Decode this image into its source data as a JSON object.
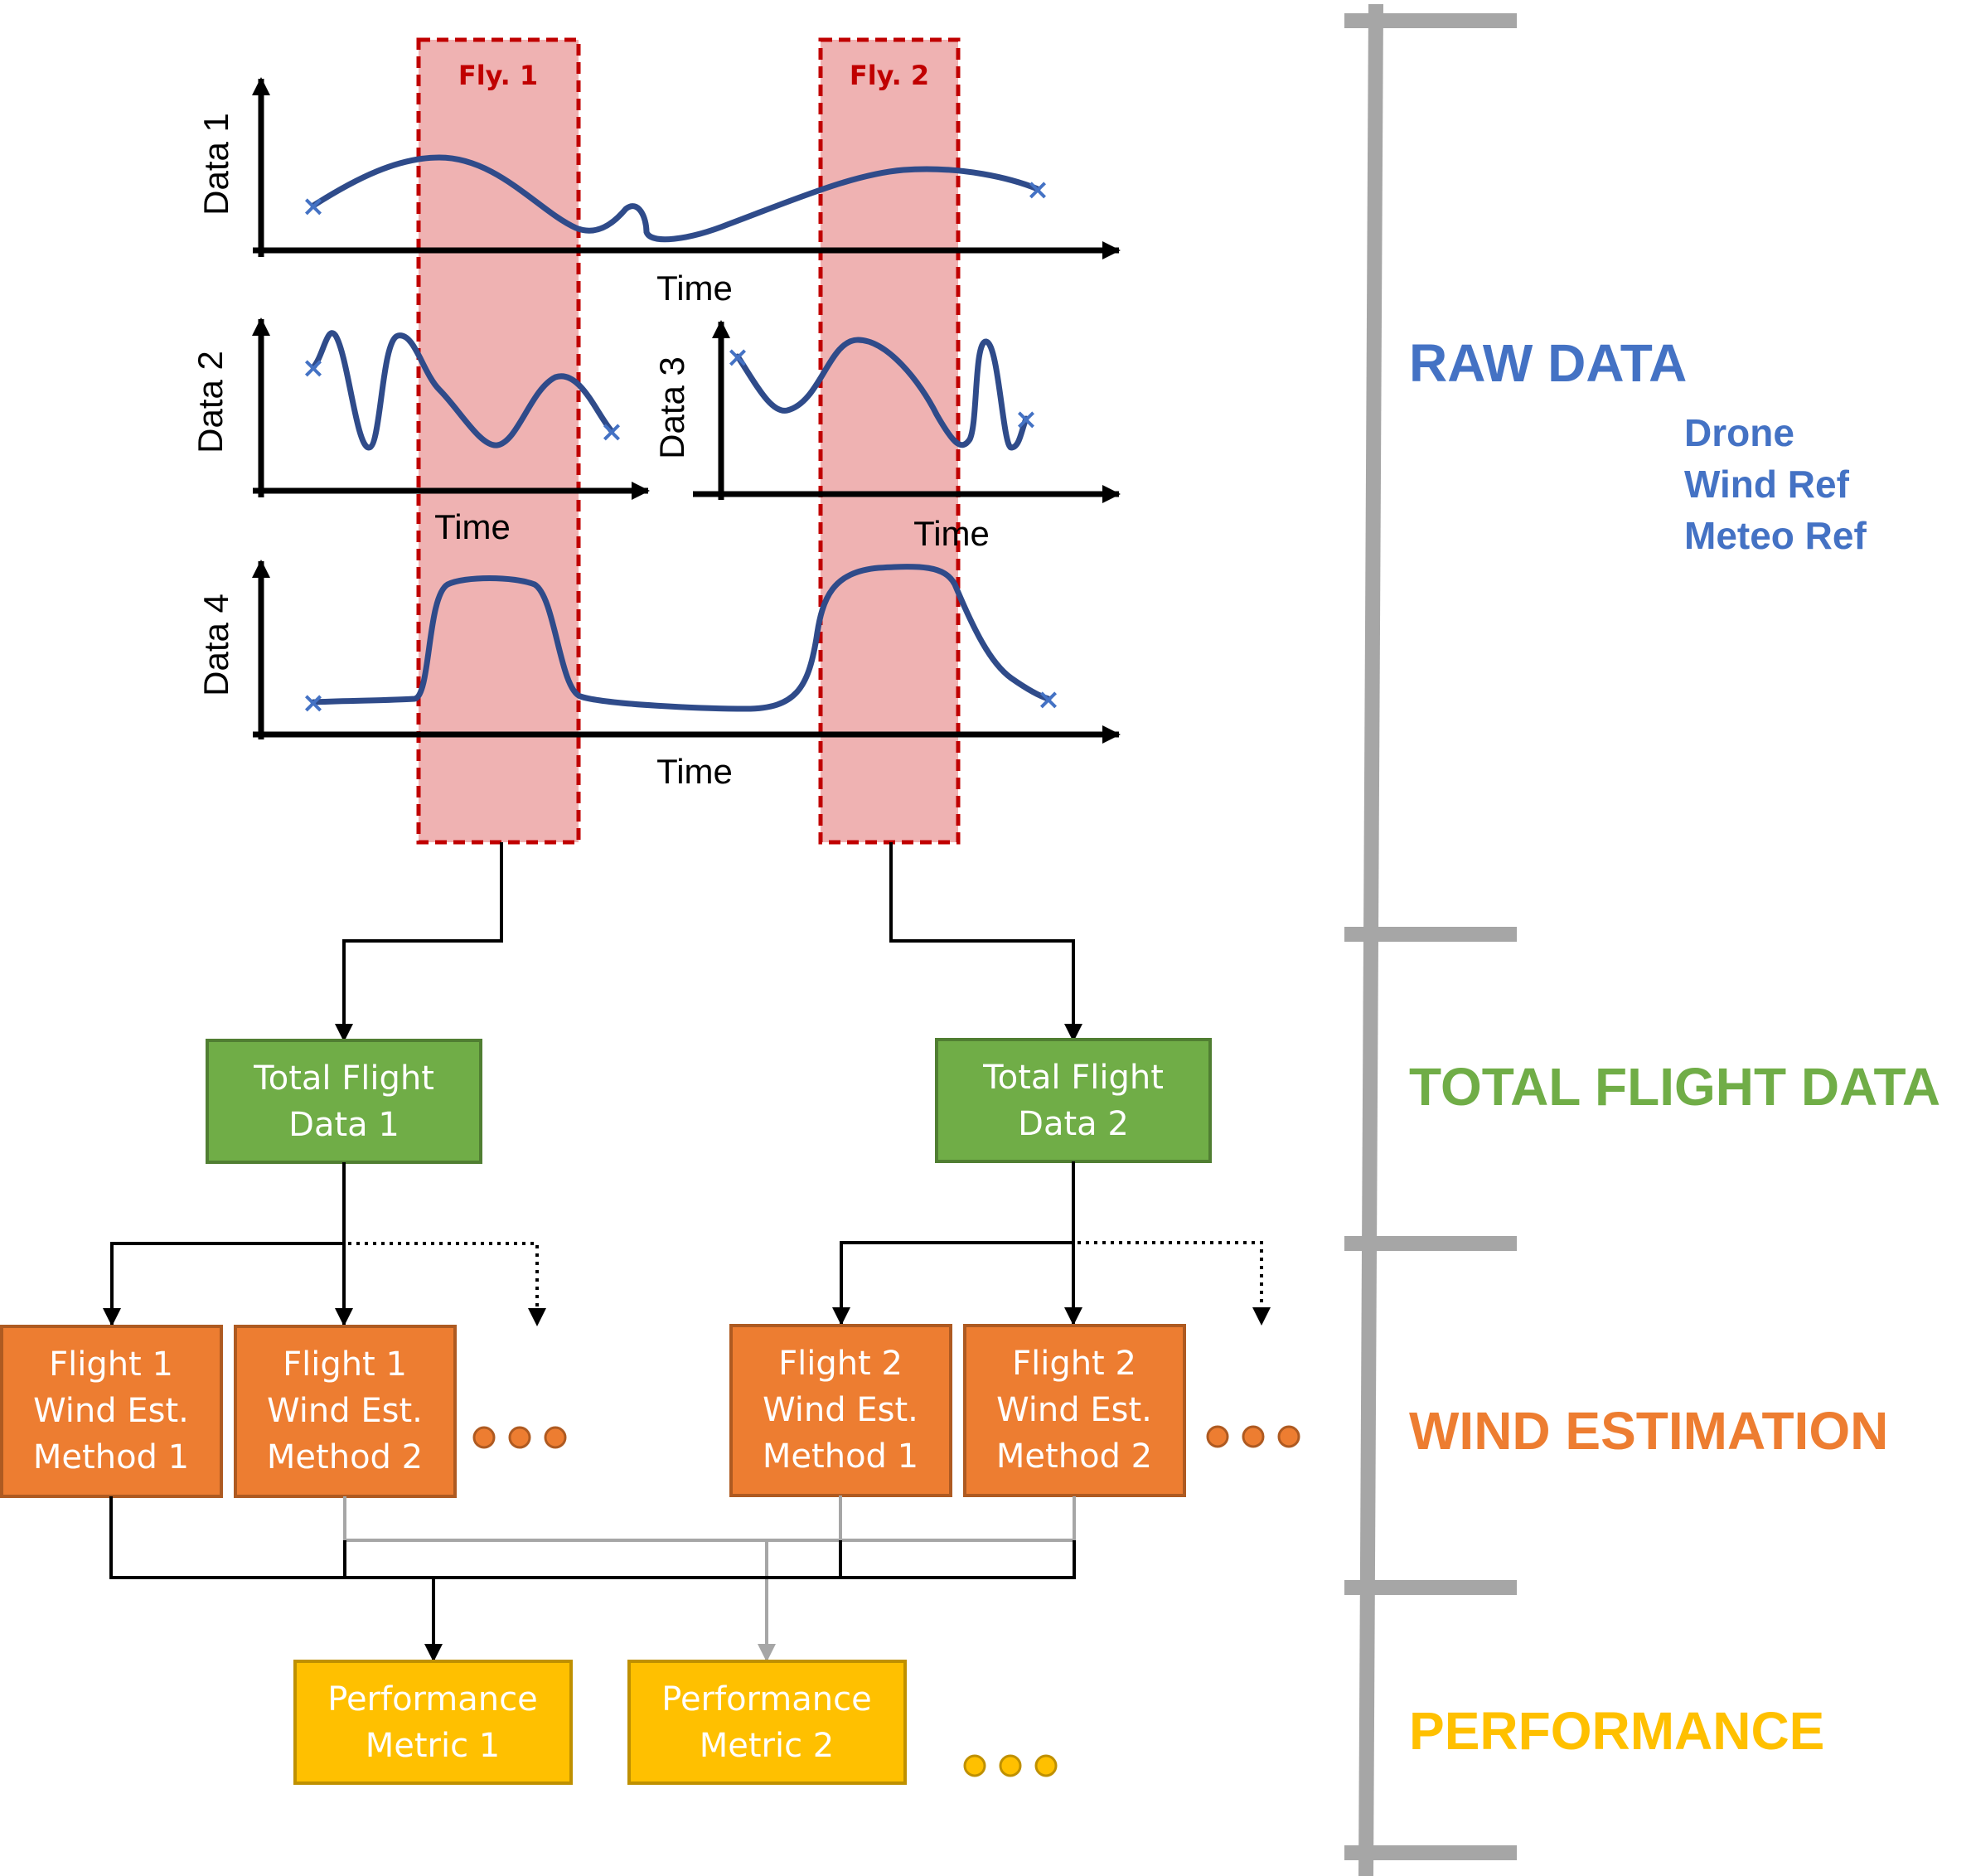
{
  "charts": {
    "data1": {
      "ylabel": "Data 1",
      "xlabel": "Time"
    },
    "data2": {
      "ylabel": "Data 2",
      "xlabel": "Time"
    },
    "data3": {
      "ylabel": "Data 3",
      "xlabel": "Time"
    },
    "data4": {
      "ylabel": "Data 4",
      "xlabel": "Time"
    }
  },
  "flights": {
    "fly1": "Fly. 1",
    "fly2": "Fly. 2"
  },
  "total_flight": {
    "box1": [
      "Total Flight",
      "Data 1"
    ],
    "box2": [
      "Total Flight",
      "Data 2"
    ]
  },
  "wind_estimation": {
    "f1m1": [
      "Flight 1",
      "Wind Est.",
      "Method 1"
    ],
    "f1m2": [
      "Flight 1",
      "Wind Est.",
      "Method 2"
    ],
    "f2m1": [
      "Flight 2",
      "Wind Est.",
      "Method 1"
    ],
    "f2m2": [
      "Flight 2",
      "Wind Est.",
      "Method 2"
    ]
  },
  "performance": {
    "m1": [
      "Performance",
      "Metric 1"
    ],
    "m2": [
      "Performance",
      "Metric 2"
    ]
  },
  "stages": {
    "raw": "RAW DATA",
    "raw_sources": [
      "Drone",
      "Wind Ref",
      "Meteo Ref"
    ],
    "total": "TOTAL FLIGHT DATA",
    "wind": "WIND ESTIMATION",
    "perf": "PERFORMANCE"
  },
  "colors": {
    "curve": "#2f4b8a",
    "marker": "#4472c4",
    "flight_window": "#c00000",
    "total_flight": "#70ad47",
    "wind_estimation": "#ed7d31",
    "performance": "#ffc000",
    "timeline": "#a6a6a6"
  }
}
